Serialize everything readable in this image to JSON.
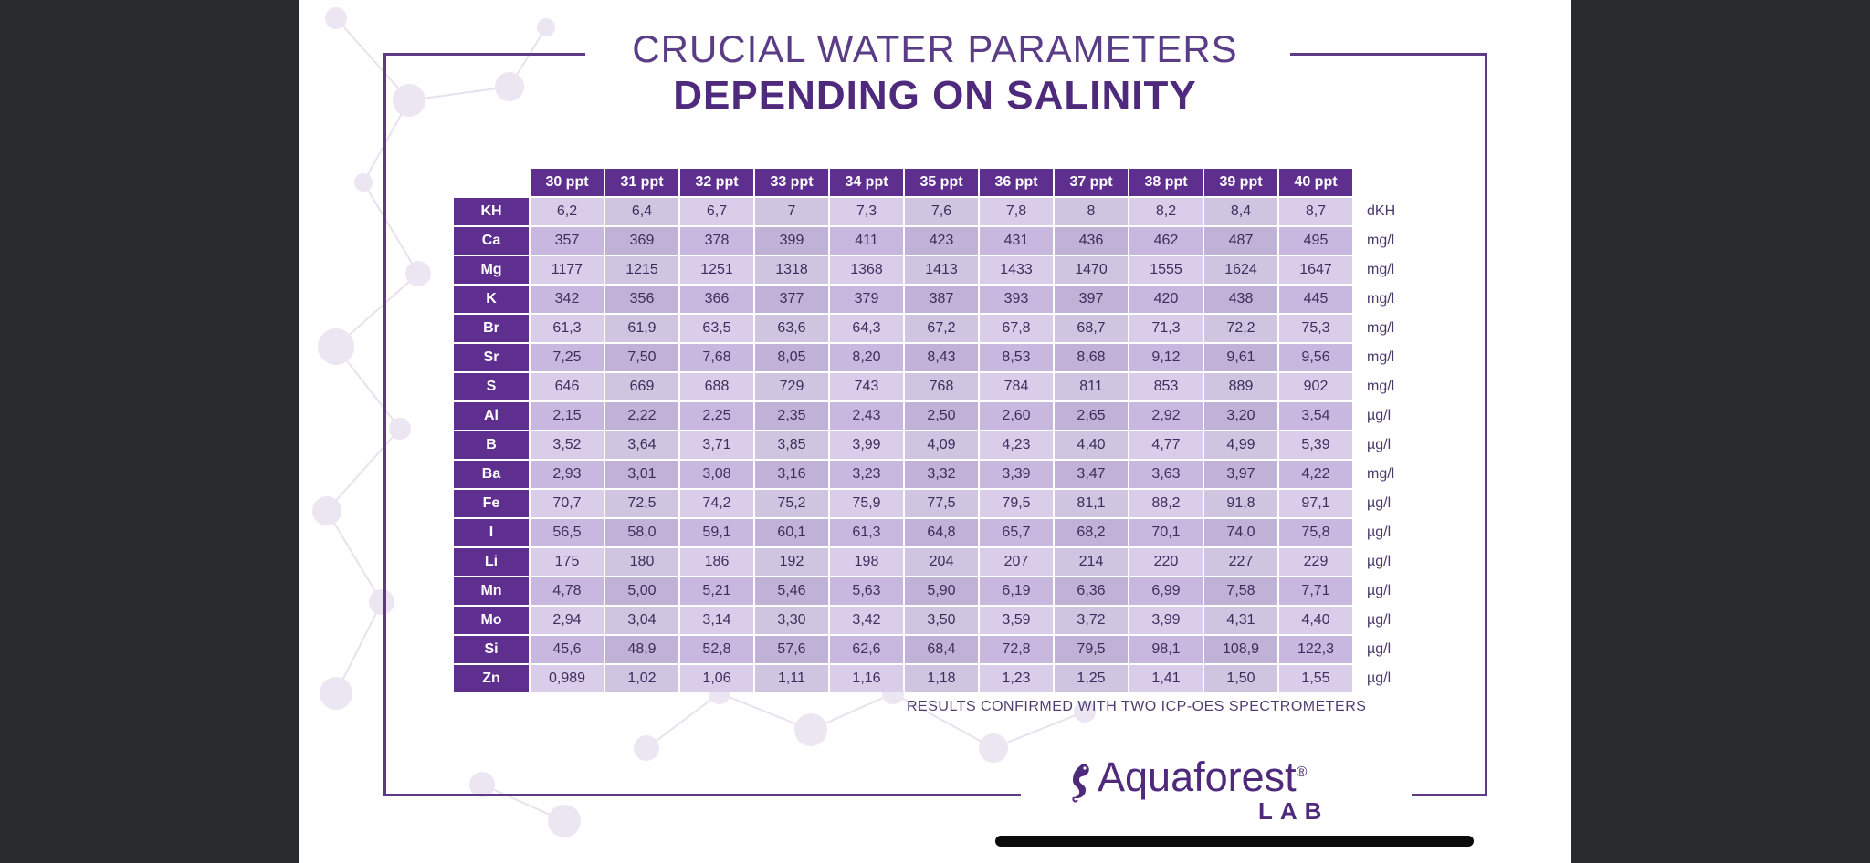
{
  "title": {
    "line1": "CRUCIAL WATER PARAMETERS",
    "line2": "DEPENDING ON SALINITY"
  },
  "table": {
    "columns": [
      "30 ppt",
      "31 ppt",
      "32 ppt",
      "33 ppt",
      "34 ppt",
      "35 ppt",
      "36 ppt",
      "37 ppt",
      "38 ppt",
      "39 ppt",
      "40 ppt"
    ],
    "rows": [
      {
        "param": "KH",
        "values": [
          "6,2",
          "6,4",
          "6,7",
          "7",
          "7,3",
          "7,6",
          "7,8",
          "8",
          "8,2",
          "8,4",
          "8,7"
        ],
        "unit": "dKH"
      },
      {
        "param": "Ca",
        "values": [
          "357",
          "369",
          "378",
          "399",
          "411",
          "423",
          "431",
          "436",
          "462",
          "487",
          "495"
        ],
        "unit": "mg/l"
      },
      {
        "param": "Mg",
        "values": [
          "1177",
          "1215",
          "1251",
          "1318",
          "1368",
          "1413",
          "1433",
          "1470",
          "1555",
          "1624",
          "1647"
        ],
        "unit": "mg/l"
      },
      {
        "param": "K",
        "values": [
          "342",
          "356",
          "366",
          "377",
          "379",
          "387",
          "393",
          "397",
          "420",
          "438",
          "445"
        ],
        "unit": "mg/l"
      },
      {
        "param": "Br",
        "values": [
          "61,3",
          "61,9",
          "63,5",
          "63,6",
          "64,3",
          "67,2",
          "67,8",
          "68,7",
          "71,3",
          "72,2",
          "75,3"
        ],
        "unit": "mg/l"
      },
      {
        "param": "Sr",
        "values": [
          "7,25",
          "7,50",
          "7,68",
          "8,05",
          "8,20",
          "8,43",
          "8,53",
          "8,68",
          "9,12",
          "9,61",
          "9,56"
        ],
        "unit": "mg/l"
      },
      {
        "param": "S",
        "values": [
          "646",
          "669",
          "688",
          "729",
          "743",
          "768",
          "784",
          "811",
          "853",
          "889",
          "902"
        ],
        "unit": "mg/l"
      },
      {
        "param": "Al",
        "values": [
          "2,15",
          "2,22",
          "2,25",
          "2,35",
          "2,43",
          "2,50",
          "2,60",
          "2,65",
          "2,92",
          "3,20",
          "3,54"
        ],
        "unit": "µg/l"
      },
      {
        "param": "B",
        "values": [
          "3,52",
          "3,64",
          "3,71",
          "3,85",
          "3,99",
          "4,09",
          "4,23",
          "4,40",
          "4,77",
          "4,99",
          "5,39"
        ],
        "unit": "µg/l"
      },
      {
        "param": "Ba",
        "values": [
          "2,93",
          "3,01",
          "3,08",
          "3,16",
          "3,23",
          "3,32",
          "3,39",
          "3,47",
          "3,63",
          "3,97",
          "4,22"
        ],
        "unit": "mg/l"
      },
      {
        "param": "Fe",
        "values": [
          "70,7",
          "72,5",
          "74,2",
          "75,2",
          "75,9",
          "77,5",
          "79,5",
          "81,1",
          "88,2",
          "91,8",
          "97,1"
        ],
        "unit": "µg/l"
      },
      {
        "param": "I",
        "values": [
          "56,5",
          "58,0",
          "59,1",
          "60,1",
          "61,3",
          "64,8",
          "65,7",
          "68,2",
          "70,1",
          "74,0",
          "75,8"
        ],
        "unit": "µg/l"
      },
      {
        "param": "Li",
        "values": [
          "175",
          "180",
          "186",
          "192",
          "198",
          "204",
          "207",
          "214",
          "220",
          "227",
          "229"
        ],
        "unit": "µg/l"
      },
      {
        "param": "Mn",
        "values": [
          "4,78",
          "5,00",
          "5,21",
          "5,46",
          "5,63",
          "5,90",
          "6,19",
          "6,36",
          "6,99",
          "7,58",
          "7,71"
        ],
        "unit": "µg/l"
      },
      {
        "param": "Mo",
        "values": [
          "2,94",
          "3,04",
          "3,14",
          "3,30",
          "3,42",
          "3,50",
          "3,59",
          "3,72",
          "3,99",
          "4,31",
          "4,40"
        ],
        "unit": "µg/l"
      },
      {
        "param": "Si",
        "values": [
          "45,6",
          "48,9",
          "52,8",
          "57,6",
          "62,6",
          "68,4",
          "72,8",
          "79,5",
          "98,1",
          "108,9",
          "122,3"
        ],
        "unit": "µg/l"
      },
      {
        "param": "Zn",
        "values": [
          "0,989",
          "1,02",
          "1,06",
          "1,11",
          "1,16",
          "1,18",
          "1,23",
          "1,25",
          "1,41",
          "1,50",
          "1,55"
        ],
        "unit": "µg/l"
      }
    ]
  },
  "footnote": "RESULTS CONFIRMED WITH TWO ICP-OES SPECTROMETERS",
  "logo": {
    "name": "Aquaforest",
    "registered": "®",
    "sub": "LAB",
    "icon": "seahorse-icon"
  },
  "colors": {
    "header_purple": "#5e2f8e",
    "cell_light": "#d9cdea",
    "cell_mid": "#c8b8e0",
    "title_purple": "#4f2a7c"
  }
}
